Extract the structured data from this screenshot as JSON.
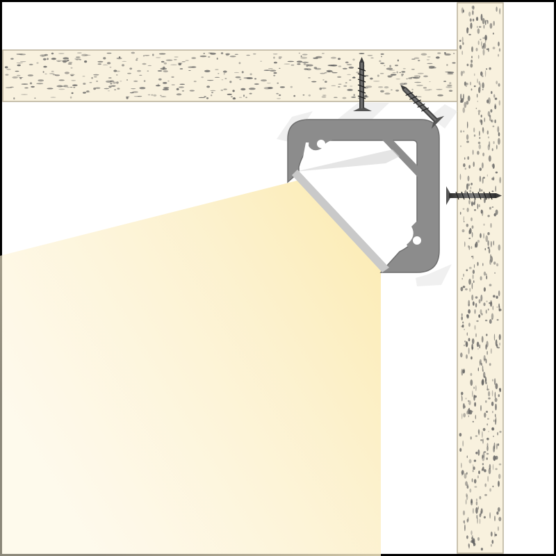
{
  "diagram": {
    "kind": "corner-led-profile-installation",
    "colors": {
      "frame": "#000000",
      "board": "#f8f1de",
      "board_edge": "#b9b09a",
      "speckle": "#5e5e5e",
      "profile": "#8c8c8c",
      "profile_dark": "#6f6f6f",
      "diffuser": "#c9c9c9",
      "screw": "#3a3a3a",
      "light": "#fbe9a8"
    },
    "components": [
      {
        "name": "horizontal-board",
        "icon": "board-section"
      },
      {
        "name": "vertical-board",
        "icon": "board-section"
      },
      {
        "name": "corner-aluminium-profile",
        "icon": "corner-profile"
      },
      {
        "name": "diffuser-cover",
        "icon": "diffuser"
      },
      {
        "name": "screw-top",
        "icon": "screw-icon"
      },
      {
        "name": "screw-diagonal",
        "icon": "screw-icon"
      },
      {
        "name": "screw-side",
        "icon": "screw-icon"
      },
      {
        "name": "light-beam",
        "icon": "light-cone"
      }
    ]
  }
}
